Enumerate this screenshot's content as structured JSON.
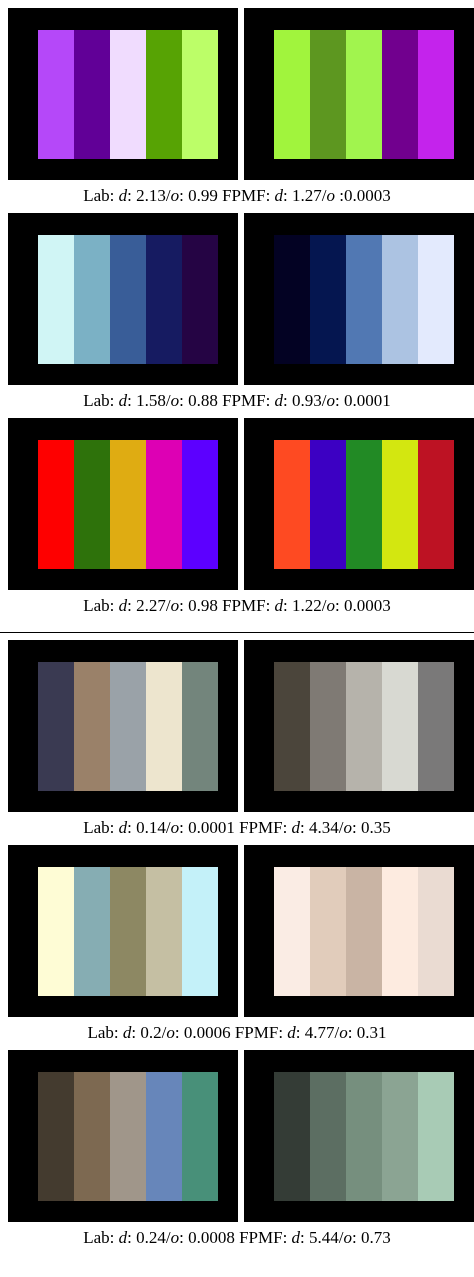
{
  "groups": [
    {
      "rows": [
        {
          "left": [
            "#b548f9",
            "#610097",
            "#f0dcfe",
            "#57a304",
            "#bcfe68"
          ],
          "right": [
            "#a1f43d",
            "#5d9720",
            "#a1f44e",
            "#71008e",
            "#c423ec"
          ],
          "caption": {
            "lab_label": "Lab:",
            "d": "2.13",
            "o": "0.99",
            "fpmf_label": "FPMF:",
            "fd": "1.27",
            "fo": "0.0003",
            "fo_sep": " :"
          }
        },
        {
          "left": [
            "#d0f5f5",
            "#7bb1c5",
            "#395d98",
            "#161b61",
            "#250444"
          ],
          "right": [
            "#030223",
            "#051650",
            "#5178b3",
            "#acc3e2",
            "#e3eafd"
          ],
          "caption": {
            "lab_label": "Lab:",
            "d": "1.58",
            "o": "0.88",
            "fpmf_label": "FPMF:",
            "fd": "0.93",
            "fo": "0.0001",
            "fo_sep": ": "
          }
        },
        {
          "left": [
            "#fe0000",
            "#2e720b",
            "#dfac12",
            "#dd00b4",
            "#5c00ff"
          ],
          "right": [
            "#fe4a22",
            "#3c00c3",
            "#228a25",
            "#d3e710",
            "#bd1223"
          ],
          "caption": {
            "lab_label": "Lab:",
            "d": "2.27",
            "o": "0.98",
            "fpmf_label": "FPMF:",
            "fd": "1.22",
            "fo": "0.0003",
            "fo_sep": ": "
          }
        }
      ]
    },
    {
      "rows": [
        {
          "left": [
            "#3a3a52",
            "#9a8169",
            "#9aa2a8",
            "#ede5ce",
            "#73857c"
          ],
          "right": [
            "#4b453b",
            "#7f7a74",
            "#b6b3ab",
            "#d8d9d2",
            "#7a7979"
          ],
          "caption": {
            "lab_label": "Lab:",
            "d": "0.14",
            "o": "0.0001",
            "fpmf_label": "FPMF:",
            "fd": "4.34",
            "fo": "0.35",
            "fo_sep": ": "
          }
        },
        {
          "left": [
            "#fefcd5",
            "#86adb3",
            "#8d8863",
            "#c5bfa3",
            "#c4f1f9"
          ],
          "right": [
            "#faece4",
            "#e1ccbb",
            "#c9b4a4",
            "#fdebe0",
            "#eadbd2"
          ],
          "caption": {
            "lab_label": "Lab:",
            "d": "0.2",
            "o": "0.0006",
            "fpmf_label": "FPMF:",
            "fd": "4.77",
            "fo": "0.31",
            "fo_sep": ": "
          }
        },
        {
          "left": [
            "#443b2f",
            "#7d6951",
            "#a0968a",
            "#6786ba",
            "#489079"
          ],
          "right": [
            "#343c36",
            "#5c6e62",
            "#768f7e",
            "#8ba493",
            "#a8cbb5"
          ],
          "caption": {
            "lab_label": "Lab:",
            "d": "0.24",
            "o": "0.0008",
            "fpmf_label": "FPMF:",
            "fd": "5.44",
            "fo": "0.73",
            "fo_sep": ": "
          }
        }
      ]
    }
  ]
}
